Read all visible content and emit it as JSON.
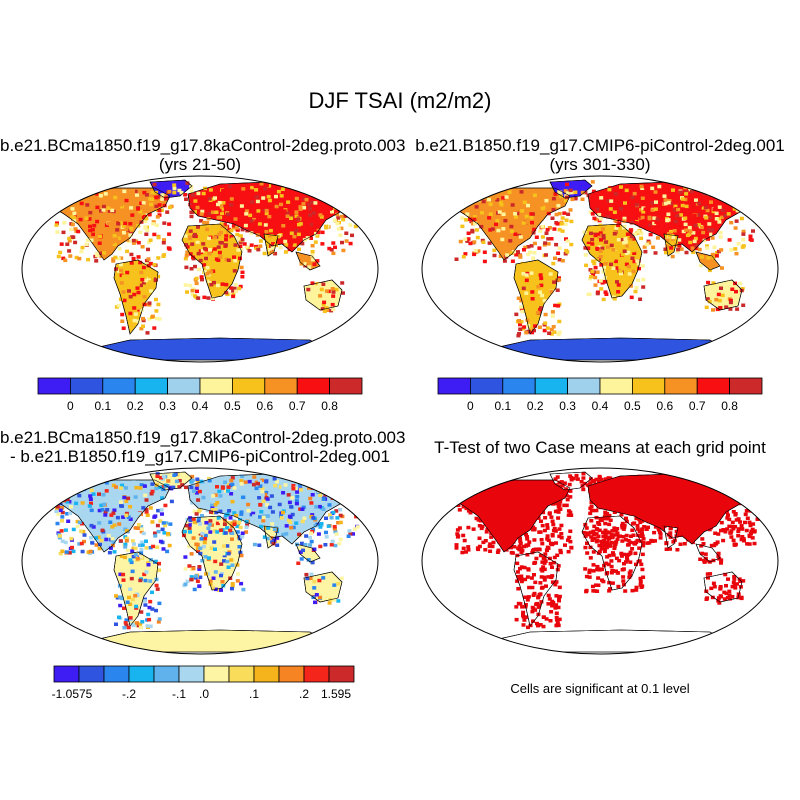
{
  "title": "DJF TSAI (m2/m2)",
  "panels": [
    {
      "title_line1": "b.e21.BCma1850.f19_g17.8kaControl-2deg.proto.003",
      "title_line2": "(yrs 21-50)",
      "kind": "field",
      "colorbar": {
        "colors": [
          "#3e1cf4",
          "#2f55e0",
          "#2a86ee",
          "#17b4ef",
          "#9fd0ec",
          "#fdf49b",
          "#f6c21b",
          "#f69224",
          "#f70f12",
          "#cc2a2a"
        ],
        "tick_labels": [
          "0",
          "0.1",
          "0.2",
          "0.3",
          "0.4",
          "0.5",
          "0.6",
          "0.7",
          "0.8"
        ]
      }
    },
    {
      "title_line1": "b.e21.B1850.f19_g17.CMIP6-piControl-2deg.001",
      "title_line2": "(yrs 301-330)",
      "kind": "field",
      "colorbar": {
        "colors": [
          "#3e1cf4",
          "#2f55e0",
          "#2a86ee",
          "#17b4ef",
          "#9fd0ec",
          "#fdf49b",
          "#f6c21b",
          "#f69224",
          "#f70f12",
          "#cc2a2a"
        ],
        "tick_labels": [
          "0",
          "0.1",
          "0.2",
          "0.3",
          "0.4",
          "0.5",
          "0.6",
          "0.7",
          "0.8"
        ]
      }
    },
    {
      "title_line1": "b.e21.BCma1850.f19_g17.8kaControl-2deg.proto.003",
      "title_line2": "- b.e21.B1850.f19_g17.CMIP6-piControl-2deg.001",
      "kind": "difference",
      "colorbar": {
        "colors": [
          "#3e1cf4",
          "#2f55e0",
          "#2a86ee",
          "#17b4ef",
          "#5fb2ec",
          "#a9d7f0",
          "#fdf5a3",
          "#f9dc5a",
          "#f6b41c",
          "#f68423",
          "#f4261b",
          "#cc2a2a"
        ],
        "tick_labels": [
          "-1.0575",
          "-.2",
          "-.1",
          ".0",
          ".1",
          ".2",
          "1.595"
        ]
      }
    },
    {
      "title_line1": "T-Test of two Case means at each grid point",
      "kind": "significance",
      "note": "Cells are significant at 0.1 level"
    }
  ],
  "colors": {
    "ocean": "#ffffff",
    "coast": "#000000",
    "significant": "#e8060c",
    "antarctica_field": "#2f55e0",
    "antarctica_diff": "#fdf5a3"
  }
}
